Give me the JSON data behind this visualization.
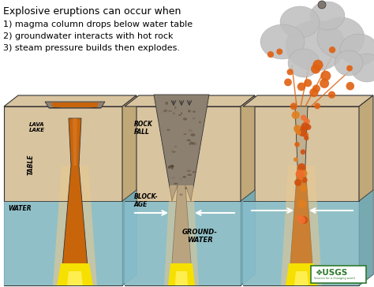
{
  "title_line1": "Explosive eruptions can occur when",
  "title_line2": "1) magma column drops below water table",
  "title_line3": "2) groundwater interacts with hot rock",
  "title_line4": "3) steam pressure builds then explodes.",
  "bg_color": "#ffffff",
  "ground_color": "#d9c4a0",
  "ground_dark": "#c0a878",
  "water_color": "#88bfcc",
  "water_dark": "#6aaabb",
  "lava_color": "#c8650a",
  "lava_light": "#e08030",
  "magma_color": "#f5e000",
  "magma_glow": "#f0b820",
  "rock_color": "#908070",
  "rock_dark": "#706050",
  "smoke_color": "#c0c0c0",
  "smoke_edge": "#a0a0a0",
  "ejection_color": "#e06010",
  "usgs_green": "#2e7a2e",
  "outline": "#333333"
}
